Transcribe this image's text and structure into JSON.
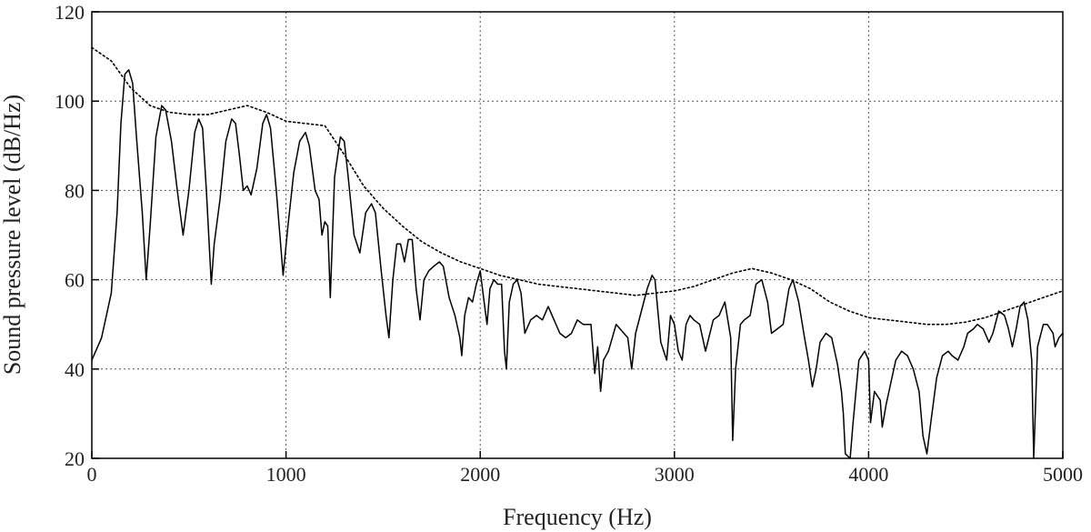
{
  "chart_data": {
    "type": "line",
    "title": "",
    "xlabel": "Frequency (Hz)",
    "ylabel": "Sound pressure level (dB/Hz)",
    "xlim": [
      0,
      5000
    ],
    "ylim": [
      20,
      120
    ],
    "xticks": [
      0,
      1000,
      2000,
      3000,
      4000,
      5000
    ],
    "yticks": [
      20,
      40,
      60,
      80,
      100,
      120
    ],
    "xtick_labels": [
      "0",
      "1000",
      "2000",
      "3000",
      "4000",
      "5000"
    ],
    "ytick_labels": [
      "20",
      "40",
      "60",
      "80",
      "100",
      "120"
    ],
    "grid": true,
    "legend": "none",
    "series": [
      {
        "style": "solid",
        "color": "#000000",
        "points": [
          [
            0,
            42
          ],
          [
            50,
            47
          ],
          [
            100,
            57
          ],
          [
            130,
            75
          ],
          [
            150,
            95
          ],
          [
            170,
            106
          ],
          [
            190,
            107
          ],
          [
            210,
            104
          ],
          [
            230,
            92
          ],
          [
            260,
            75
          ],
          [
            280,
            60
          ],
          [
            300,
            72
          ],
          [
            330,
            92
          ],
          [
            360,
            99
          ],
          [
            380,
            98
          ],
          [
            410,
            91
          ],
          [
            440,
            80
          ],
          [
            470,
            70
          ],
          [
            500,
            80
          ],
          [
            530,
            93
          ],
          [
            550,
            96
          ],
          [
            570,
            94
          ],
          [
            590,
            80
          ],
          [
            615,
            59
          ],
          [
            630,
            68
          ],
          [
            660,
            78
          ],
          [
            690,
            91
          ],
          [
            720,
            96
          ],
          [
            740,
            95
          ],
          [
            760,
            88
          ],
          [
            780,
            80
          ],
          [
            800,
            81
          ],
          [
            820,
            79
          ],
          [
            850,
            85
          ],
          [
            880,
            95
          ],
          [
            900,
            97
          ],
          [
            920,
            94
          ],
          [
            950,
            80
          ],
          [
            985,
            61
          ],
          [
            1010,
            72
          ],
          [
            1040,
            84
          ],
          [
            1070,
            91
          ],
          [
            1100,
            93
          ],
          [
            1120,
            90
          ],
          [
            1150,
            80
          ],
          [
            1170,
            78
          ],
          [
            1185,
            70
          ],
          [
            1200,
            73
          ],
          [
            1215,
            72
          ],
          [
            1228,
            56
          ],
          [
            1250,
            83
          ],
          [
            1280,
            92
          ],
          [
            1300,
            91
          ],
          [
            1320,
            83
          ],
          [
            1350,
            70
          ],
          [
            1380,
            66
          ],
          [
            1410,
            75
          ],
          [
            1440,
            77
          ],
          [
            1460,
            75
          ],
          [
            1490,
            62
          ],
          [
            1515,
            52
          ],
          [
            1530,
            47
          ],
          [
            1550,
            60
          ],
          [
            1570,
            68
          ],
          [
            1590,
            68
          ],
          [
            1610,
            64
          ],
          [
            1630,
            69
          ],
          [
            1650,
            69
          ],
          [
            1670,
            58
          ],
          [
            1690,
            51
          ],
          [
            1710,
            60
          ],
          [
            1735,
            62
          ],
          [
            1760,
            63
          ],
          [
            1790,
            64
          ],
          [
            1810,
            63
          ],
          [
            1840,
            56
          ],
          [
            1870,
            52
          ],
          [
            1895,
            47
          ],
          [
            1905,
            43
          ],
          [
            1920,
            52
          ],
          [
            1940,
            56
          ],
          [
            1960,
            55
          ],
          [
            1980,
            59
          ],
          [
            2000,
            62
          ],
          [
            2020,
            55
          ],
          [
            2035,
            50
          ],
          [
            2050,
            58
          ],
          [
            2070,
            60
          ],
          [
            2090,
            59
          ],
          [
            2110,
            59
          ],
          [
            2125,
            44
          ],
          [
            2135,
            40
          ],
          [
            2150,
            55
          ],
          [
            2170,
            59
          ],
          [
            2190,
            60
          ],
          [
            2210,
            57
          ],
          [
            2230,
            48
          ],
          [
            2260,
            51
          ],
          [
            2290,
            52
          ],
          [
            2320,
            51
          ],
          [
            2350,
            54
          ],
          [
            2380,
            51
          ],
          [
            2410,
            48
          ],
          [
            2440,
            47
          ],
          [
            2470,
            48
          ],
          [
            2500,
            51
          ],
          [
            2530,
            50
          ],
          [
            2570,
            50
          ],
          [
            2590,
            39
          ],
          [
            2605,
            45
          ],
          [
            2620,
            35
          ],
          [
            2635,
            42
          ],
          [
            2660,
            44
          ],
          [
            2700,
            50
          ],
          [
            2740,
            48
          ],
          [
            2760,
            47
          ],
          [
            2780,
            40
          ],
          [
            2800,
            48
          ],
          [
            2830,
            53
          ],
          [
            2860,
            58
          ],
          [
            2885,
            61
          ],
          [
            2900,
            60
          ],
          [
            2915,
            53
          ],
          [
            2930,
            46
          ],
          [
            2960,
            42
          ],
          [
            2980,
            52
          ],
          [
            3000,
            50
          ],
          [
            3020,
            44
          ],
          [
            3040,
            42
          ],
          [
            3060,
            50
          ],
          [
            3080,
            52
          ],
          [
            3100,
            51
          ],
          [
            3130,
            50
          ],
          [
            3160,
            44
          ],
          [
            3200,
            51
          ],
          [
            3230,
            52
          ],
          [
            3260,
            55
          ],
          [
            3290,
            47
          ],
          [
            3300,
            24
          ],
          [
            3315,
            40
          ],
          [
            3340,
            50
          ],
          [
            3360,
            51
          ],
          [
            3390,
            52
          ],
          [
            3420,
            59
          ],
          [
            3450,
            60
          ],
          [
            3480,
            55
          ],
          [
            3500,
            48
          ],
          [
            3530,
            49
          ],
          [
            3560,
            50
          ],
          [
            3590,
            58
          ],
          [
            3610,
            60
          ],
          [
            3640,
            55
          ],
          [
            3670,
            47
          ],
          [
            3690,
            42
          ],
          [
            3710,
            36
          ],
          [
            3730,
            40
          ],
          [
            3750,
            46
          ],
          [
            3780,
            48
          ],
          [
            3810,
            47
          ],
          [
            3840,
            41
          ],
          [
            3860,
            35
          ],
          [
            3870,
            30
          ],
          [
            3880,
            21
          ],
          [
            3905,
            20
          ],
          [
            3920,
            28
          ],
          [
            3950,
            42
          ],
          [
            3980,
            44
          ],
          [
            4000,
            42
          ],
          [
            4010,
            28
          ],
          [
            4030,
            35
          ],
          [
            4060,
            33
          ],
          [
            4070,
            27
          ],
          [
            4090,
            32
          ],
          [
            4120,
            38
          ],
          [
            4140,
            42
          ],
          [
            4170,
            44
          ],
          [
            4200,
            43
          ],
          [
            4230,
            40
          ],
          [
            4260,
            35
          ],
          [
            4280,
            25
          ],
          [
            4300,
            21
          ],
          [
            4320,
            28
          ],
          [
            4350,
            38
          ],
          [
            4380,
            43
          ],
          [
            4410,
            44
          ],
          [
            4430,
            43
          ],
          [
            4460,
            42
          ],
          [
            4490,
            45
          ],
          [
            4510,
            48
          ],
          [
            4540,
            49
          ],
          [
            4560,
            50
          ],
          [
            4590,
            49
          ],
          [
            4620,
            46
          ],
          [
            4640,
            48
          ],
          [
            4670,
            53
          ],
          [
            4700,
            52
          ],
          [
            4720,
            49
          ],
          [
            4740,
            45
          ],
          [
            4760,
            49
          ],
          [
            4780,
            54
          ],
          [
            4800,
            55
          ],
          [
            4820,
            51
          ],
          [
            4840,
            42
          ],
          [
            4850,
            20
          ],
          [
            4870,
            45
          ],
          [
            4900,
            50
          ],
          [
            4920,
            50
          ],
          [
            4950,
            48
          ],
          [
            4960,
            45
          ],
          [
            4980,
            47
          ],
          [
            5000,
            48
          ]
        ]
      },
      {
        "style": "dotted",
        "color": "#000000",
        "points": [
          [
            0,
            112
          ],
          [
            100,
            109
          ],
          [
            200,
            103
          ],
          [
            300,
            99
          ],
          [
            400,
            97.5
          ],
          [
            500,
            97
          ],
          [
            600,
            97
          ],
          [
            700,
            98
          ],
          [
            800,
            99
          ],
          [
            900,
            97.5
          ],
          [
            1000,
            95.5
          ],
          [
            1100,
            95
          ],
          [
            1200,
            94.5
          ],
          [
            1300,
            88
          ],
          [
            1400,
            81
          ],
          [
            1500,
            76
          ],
          [
            1600,
            72
          ],
          [
            1700,
            68.5
          ],
          [
            1800,
            66
          ],
          [
            1900,
            64
          ],
          [
            2000,
            62.5
          ],
          [
            2100,
            61
          ],
          [
            2200,
            60
          ],
          [
            2300,
            59
          ],
          [
            2400,
            58.5
          ],
          [
            2500,
            58
          ],
          [
            2600,
            57.5
          ],
          [
            2700,
            57
          ],
          [
            2800,
            56.5
          ],
          [
            2900,
            57
          ],
          [
            3000,
            57.5
          ],
          [
            3100,
            58.5
          ],
          [
            3200,
            60
          ],
          [
            3300,
            61.5
          ],
          [
            3400,
            62.5
          ],
          [
            3500,
            61.5
          ],
          [
            3600,
            60
          ],
          [
            3700,
            58
          ],
          [
            3800,
            55
          ],
          [
            3900,
            53
          ],
          [
            4000,
            51.5
          ],
          [
            4100,
            51
          ],
          [
            4200,
            50.5
          ],
          [
            4300,
            50
          ],
          [
            4400,
            50
          ],
          [
            4500,
            50.5
          ],
          [
            4600,
            51.5
          ],
          [
            4700,
            53
          ],
          [
            4800,
            54.5
          ],
          [
            4900,
            56
          ],
          [
            5000,
            57.5
          ]
        ]
      }
    ]
  }
}
